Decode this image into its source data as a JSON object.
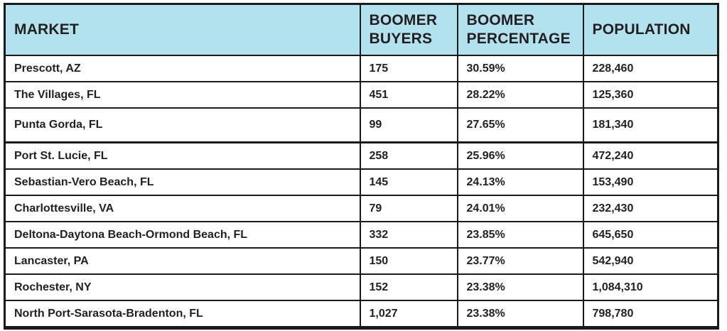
{
  "colors": {
    "header_bg": "#b3e2ef",
    "border": "#1a1a1a",
    "text": "#231f20",
    "row_bg": "#ffffff"
  },
  "chart_data": {
    "type": "table",
    "columns": [
      {
        "id": "market",
        "label": "MARKET"
      },
      {
        "id": "buyers",
        "label": "BOOMER BUYERS"
      },
      {
        "id": "percentage",
        "label": "BOOMER PERCENTAGE"
      },
      {
        "id": "population",
        "label": "POPULATION"
      }
    ],
    "rows": [
      {
        "market": "Prescott, AZ",
        "buyers": "175",
        "percentage": "30.59%",
        "population": "228,460"
      },
      {
        "market": "The Villages, FL",
        "buyers": "451",
        "percentage": "28.22%",
        "population": "125,360"
      },
      {
        "market": "Punta Gorda, FL",
        "buyers": "99",
        "percentage": "27.65%",
        "population": "181,340"
      },
      {
        "market": "Port St. Lucie, FL",
        "buyers": "258",
        "percentage": "25.96%",
        "population": "472,240"
      },
      {
        "market": "Sebastian-Vero Beach, FL",
        "buyers": "145",
        "percentage": "24.13%",
        "population": "153,490"
      },
      {
        "market": "Charlottesville, VA",
        "buyers": "79",
        "percentage": "24.01%",
        "population": "232,430"
      },
      {
        "market": "Deltona-Daytona Beach-Ormond Beach, FL",
        "buyers": "332",
        "percentage": "23.85%",
        "population": "645,650"
      },
      {
        "market": "Lancaster, PA",
        "buyers": "150",
        "percentage": "23.77%",
        "population": "542,940"
      },
      {
        "market": "Rochester, NY",
        "buyers": "152",
        "percentage": "23.38%",
        "population": "1,084,310"
      },
      {
        "market": "North Port-Sarasota-Bradenton, FL",
        "buyers": "1,027",
        "percentage": "23.38%",
        "population": "798,780"
      }
    ]
  }
}
